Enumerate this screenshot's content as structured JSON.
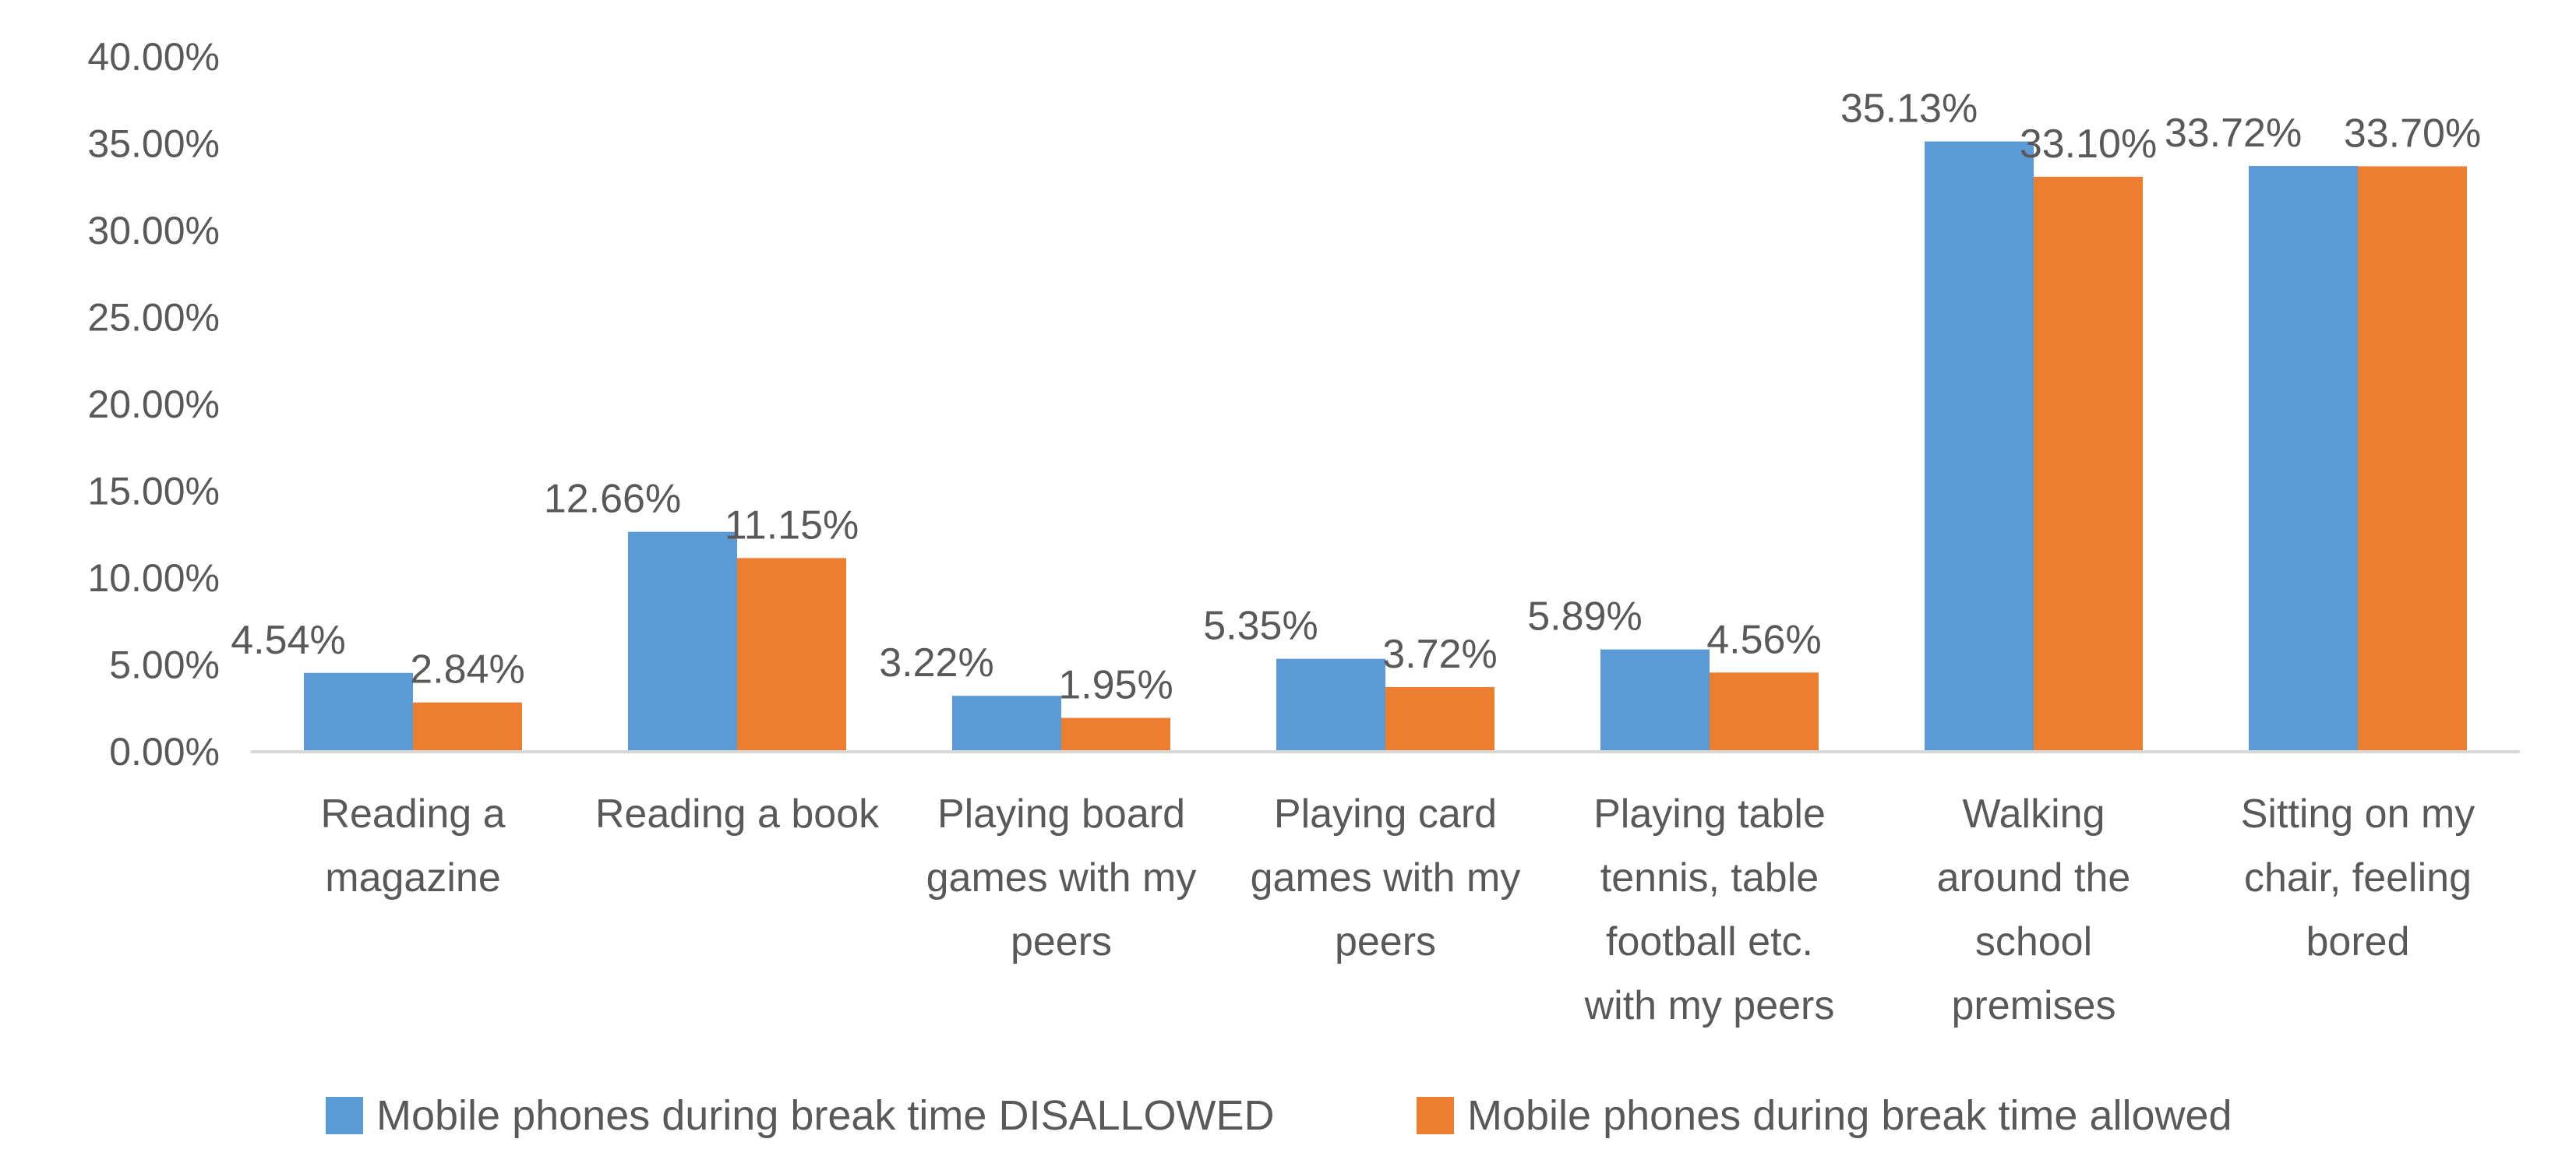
{
  "chart_data": {
    "type": "bar",
    "title": "",
    "xlabel": "",
    "ylabel": "",
    "ylim": [
      0,
      40
    ],
    "ytick_step": 5,
    "ytick_labels": [
      "0.00%",
      "5.00%",
      "10.00%",
      "15.00%",
      "20.00%",
      "25.00%",
      "30.00%",
      "35.00%",
      "40.00%"
    ],
    "grid": false,
    "legend_position": "bottom",
    "categories": [
      [
        "Reading a",
        "magazine"
      ],
      [
        "Reading a book"
      ],
      [
        "Playing board",
        "games with my",
        "peers"
      ],
      [
        "Playing card",
        "games with my",
        "peers"
      ],
      [
        "Playing table",
        "tennis, table",
        "football etc.",
        "with my peers"
      ],
      [
        "Walking",
        "around the",
        "school",
        "premises"
      ],
      [
        "Sitting on my",
        "chair, feeling",
        "bored"
      ]
    ],
    "series": [
      {
        "name": "Mobile phones during break time DISALLOWED",
        "color": "#5B9BD5",
        "values": [
          4.54,
          12.66,
          3.22,
          5.35,
          5.89,
          35.13,
          33.72
        ],
        "labels": [
          "4.54%",
          "12.66%",
          "3.22%",
          "5.35%",
          "5.89%",
          "35.13%",
          "33.72%"
        ]
      },
      {
        "name": "Mobile phones during break time allowed",
        "color": "#ED7D31",
        "values": [
          2.84,
          11.15,
          1.95,
          3.72,
          4.56,
          33.1,
          33.7
        ],
        "labels": [
          "2.84%",
          "11.15%",
          "1.95%",
          "3.72%",
          "4.56%",
          "33.10%",
          "33.70%"
        ]
      }
    ],
    "axis_color": "#D9D9D9"
  }
}
